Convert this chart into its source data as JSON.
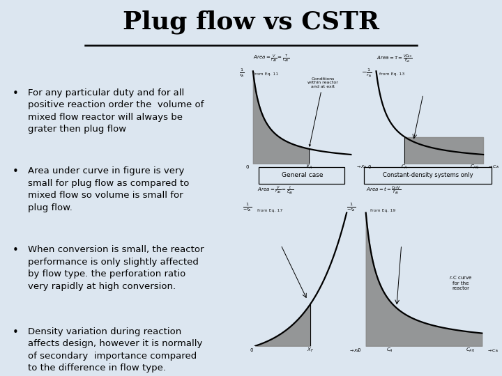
{
  "title": "Plug flow vs CSTR",
  "title_fontsize": 26,
  "background_color": "#dce6f0",
  "text_bg_color": "#e8eef5",
  "bullet_points": [
    "For any particular duty and for all\npositive reaction order the  volume of\nmixed flow reactor will always be\ngrater then plug flow",
    "Area under curve in figure is very\nsmall for plug flow as compared to\nmixed flow so volume is small for\nplug flow.",
    "When conversion is small, the reactor\nperformance is only slightly affected\nby flow type. the perforation ratio\nvery rapidly at high conversion.",
    "Density variation during reaction\naffects design, however it is normally\nof secondary  importance compared\nto the difference in flow type."
  ],
  "bullet_fontsize": 9.5,
  "text_color": "#000000",
  "diagram_gray": "#b0b0b0",
  "diagram_dark": "#888888"
}
